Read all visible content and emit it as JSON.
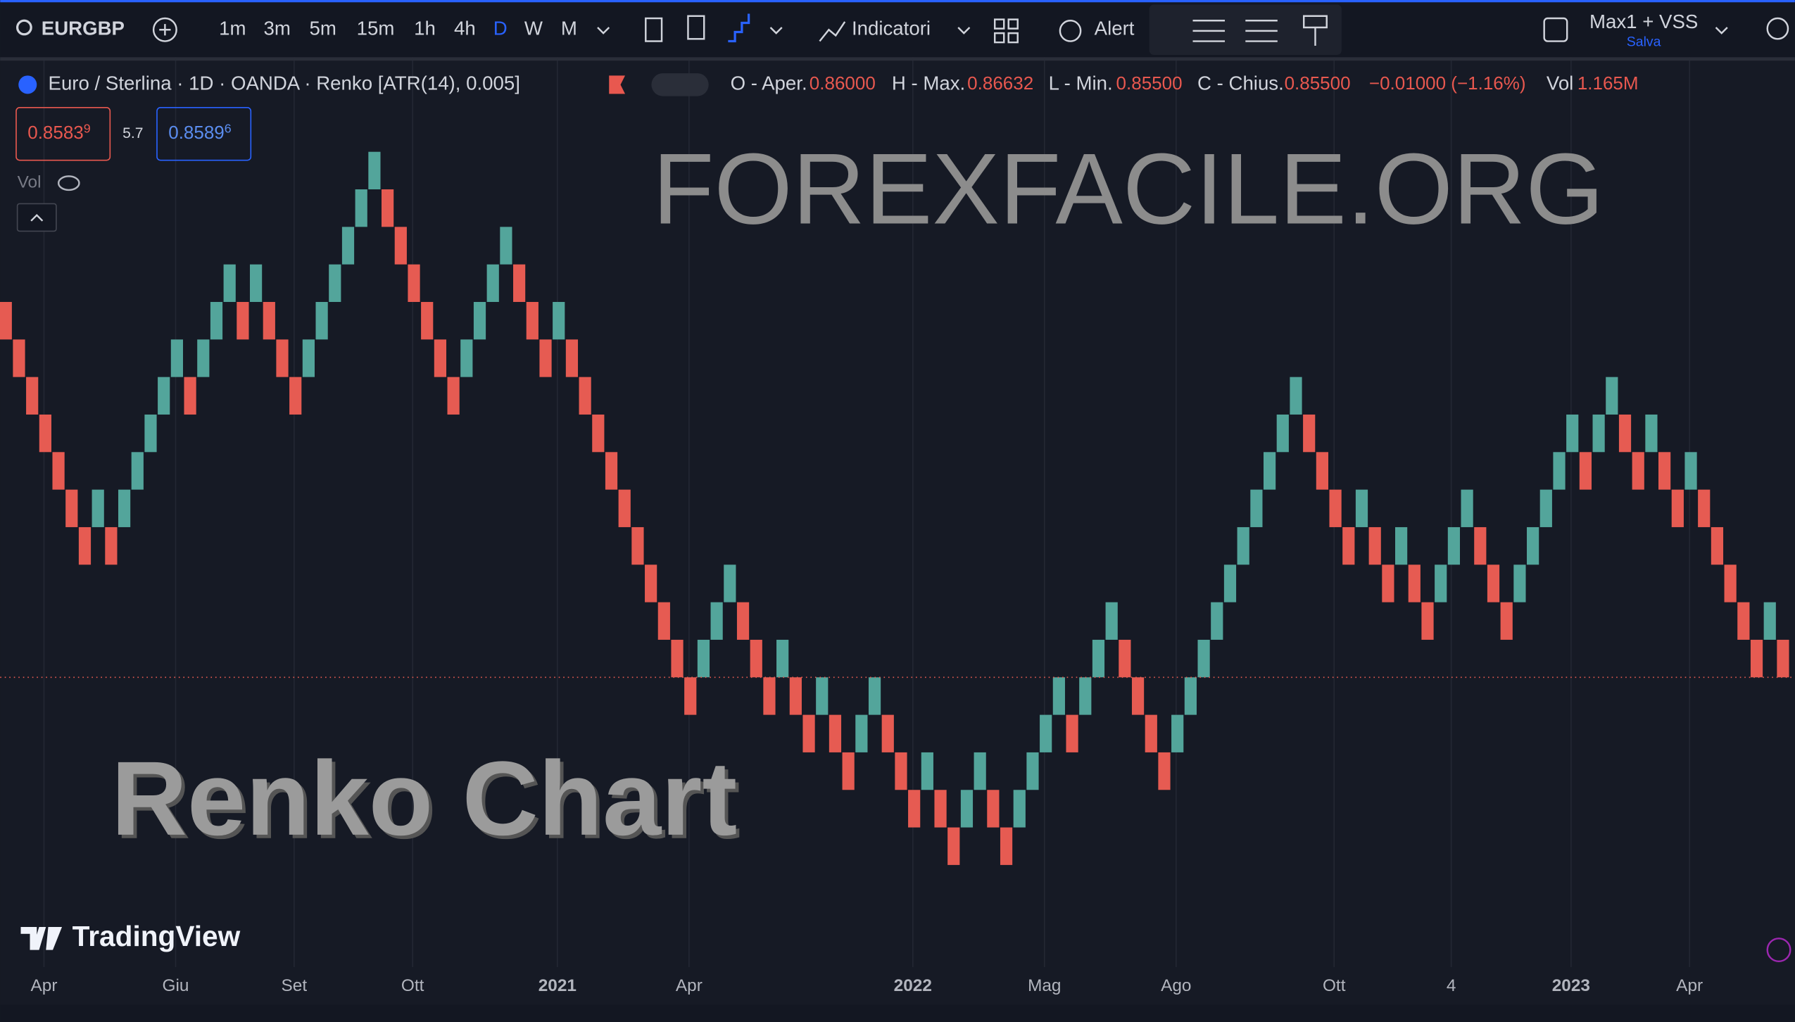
{
  "toolbar": {
    "symbol": "EURGBP",
    "intervals": [
      "1m",
      "3m",
      "5m",
      "15m",
      "1h",
      "4h",
      "D",
      "W",
      "M"
    ],
    "active_interval": 6,
    "indicators": "Indicatori",
    "alert": "Alert",
    "layout": "Max1 + VSS",
    "save": "Salva"
  },
  "legend": {
    "title": "Euro / Sterlina · 1D · OANDA · Renko [ATR(14), 0.005]",
    "open_label": "O - Aper.",
    "open": "0.86000",
    "high_label": "H - Max.",
    "high": "0.86632",
    "low_label": "L - Min.",
    "low": "0.85500",
    "close_label": "C - Chius.",
    "close": "0.85500",
    "change": "−0.01000 (−1.16%)",
    "vol_label": "Vol",
    "vol": "1.165M"
  },
  "trade": {
    "sell": "0.8583",
    "sell_sup": "9",
    "spread": "5.7",
    "buy": "0.8589",
    "buy_sup": "6"
  },
  "vol_indicator": "Vol",
  "watermarks": {
    "site": "FOREXFACILE.ORG",
    "caption": "Renko Chart",
    "brand": "TradingView"
  },
  "chart_data": {
    "type": "renko",
    "up_color": "#53a59b",
    "down_color": "#e65b52",
    "opens": [
      0.905,
      0.9,
      0.895,
      0.89,
      0.885,
      0.88,
      0.875,
      0.875,
      0.875,
      0.875,
      0.88,
      0.885,
      0.89,
      0.895,
      0.895,
      0.895,
      0.9,
      0.905,
      0.905,
      0.905,
      0.905,
      0.9,
      0.895,
      0.895,
      0.9,
      0.905,
      0.91,
      0.915,
      0.92,
      0.92,
      0.915,
      0.91,
      0.905,
      0.9,
      0.895,
      0.895,
      0.9,
      0.905,
      0.91,
      0.91,
      0.905,
      0.9,
      0.9,
      0.9,
      0.895,
      0.89,
      0.885,
      0.88,
      0.875,
      0.87,
      0.865,
      0.86,
      0.855,
      0.855,
      0.86,
      0.865,
      0.865,
      0.86,
      0.855,
      0.855,
      0.855,
      0.85,
      0.85,
      0.85,
      0.845,
      0.845,
      0.85,
      0.85,
      0.845,
      0.84,
      0.84,
      0.84,
      0.835,
      0.835,
      0.84,
      0.84,
      0.835,
      0.835,
      0.84,
      0.845,
      0.85,
      0.85,
      0.85,
      0.855,
      0.86,
      0.86,
      0.855,
      0.85,
      0.845,
      0.845,
      0.85,
      0.855,
      0.86,
      0.865,
      0.87,
      0.875,
      0.88,
      0.885,
      0.89,
      0.89,
      0.885,
      0.88,
      0.875,
      0.875,
      0.875,
      0.87,
      0.87,
      0.87,
      0.865,
      0.865,
      0.87,
      0.875,
      0.875,
      0.87,
      0.865,
      0.865,
      0.87,
      0.875,
      0.88,
      0.885,
      0.885,
      0.885,
      0.89,
      0.89,
      0.885,
      0.885,
      0.885,
      0.88,
      0.88,
      0.88,
      0.875,
      0.87,
      0.865,
      0.86,
      0.86,
      0.86
    ],
    "closes": [
      0.9,
      0.895,
      0.89,
      0.885,
      0.88,
      0.875,
      0.87,
      0.88,
      0.87,
      0.88,
      0.885,
      0.89,
      0.895,
      0.9,
      0.89,
      0.9,
      0.905,
      0.91,
      0.9,
      0.91,
      0.9,
      0.895,
      0.89,
      0.9,
      0.905,
      0.91,
      0.915,
      0.92,
      0.925,
      0.915,
      0.91,
      0.905,
      0.9,
      0.895,
      0.89,
      0.9,
      0.905,
      0.91,
      0.915,
      0.905,
      0.9,
      0.895,
      0.905,
      0.895,
      0.89,
      0.885,
      0.88,
      0.875,
      0.87,
      0.865,
      0.86,
      0.855,
      0.85,
      0.86,
      0.865,
      0.87,
      0.86,
      0.855,
      0.85,
      0.86,
      0.85,
      0.845,
      0.855,
      0.845,
      0.84,
      0.85,
      0.855,
      0.845,
      0.84,
      0.835,
      0.845,
      0.835,
      0.83,
      0.84,
      0.845,
      0.835,
      0.83,
      0.84,
      0.845,
      0.85,
      0.855,
      0.845,
      0.855,
      0.86,
      0.865,
      0.855,
      0.85,
      0.845,
      0.84,
      0.85,
      0.855,
      0.86,
      0.865,
      0.87,
      0.875,
      0.88,
      0.885,
      0.89,
      0.895,
      0.885,
      0.88,
      0.875,
      0.87,
      0.88,
      0.87,
      0.865,
      0.875,
      0.865,
      0.86,
      0.87,
      0.875,
      0.88,
      0.87,
      0.865,
      0.86,
      0.87,
      0.875,
      0.88,
      0.885,
      0.89,
      0.88,
      0.89,
      0.895,
      0.885,
      0.88,
      0.89,
      0.88,
      0.875,
      0.885,
      0.875,
      0.87,
      0.865,
      0.86,
      0.855,
      0.865,
      0.855
    ],
    "ylim": [
      0.8164,
      0.9376
    ],
    "xlim": [
      -0.43,
      135.9
    ],
    "xticks": [
      {
        "value": 2.9,
        "label": "Apr"
      },
      {
        "value": 12.9,
        "label": "Giu"
      },
      {
        "value": 21.9,
        "label": "Set"
      },
      {
        "value": 30.9,
        "label": "Ott"
      },
      {
        "value": 41.9,
        "label": "2021"
      },
      {
        "value": 51.9,
        "label": "Apr"
      },
      {
        "value": 68.9,
        "label": "2022"
      },
      {
        "value": 78.9,
        "label": "Mag"
      },
      {
        "value": 88.9,
        "label": "Ago"
      },
      {
        "value": 100.9,
        "label": "Ott"
      },
      {
        "value": 109.8,
        "label": "4"
      },
      {
        "value": 118.9,
        "label": "2023"
      },
      {
        "value": 127.9,
        "label": "Apr"
      }
    ],
    "grid": true,
    "last_price_line": true
  }
}
